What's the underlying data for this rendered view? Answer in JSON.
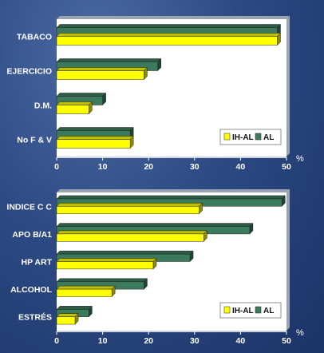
{
  "charts": [
    {
      "type": "bar",
      "orientation": "horizontal",
      "categories": [
        "TABACO",
        "EJERCICIO",
        "D.M.",
        "No F & V"
      ],
      "series": [
        {
          "name": "IH-AL",
          "color": "#ffff00",
          "values": [
            48,
            19,
            7,
            16
          ]
        },
        {
          "name": "AL",
          "color": "#3c7a5e",
          "values": [
            48,
            22,
            10,
            16
          ]
        }
      ],
      "xlim": [
        0,
        50
      ],
      "xticks": [
        "0",
        "10",
        "20",
        "30",
        "40",
        "50"
      ],
      "unit": "%",
      "legend_position": "bottom-right"
    },
    {
      "type": "bar",
      "orientation": "horizontal",
      "categories": [
        "INDICE C C",
        "APO B/A1",
        "HP ART",
        "ALCOHOL",
        "ESTRÉS"
      ],
      "series": [
        {
          "name": "IH-AL",
          "color": "#ffff00",
          "values": [
            31,
            32,
            21,
            12,
            4
          ]
        },
        {
          "name": "AL",
          "color": "#3c7a5e",
          "values": [
            49,
            42,
            29,
            19,
            7
          ]
        }
      ],
      "xlim": [
        0,
        50
      ],
      "xticks": [
        "0",
        "10",
        "20",
        "30",
        "40",
        "50"
      ],
      "unit": "%",
      "legend_position": "bottom-right"
    }
  ]
}
